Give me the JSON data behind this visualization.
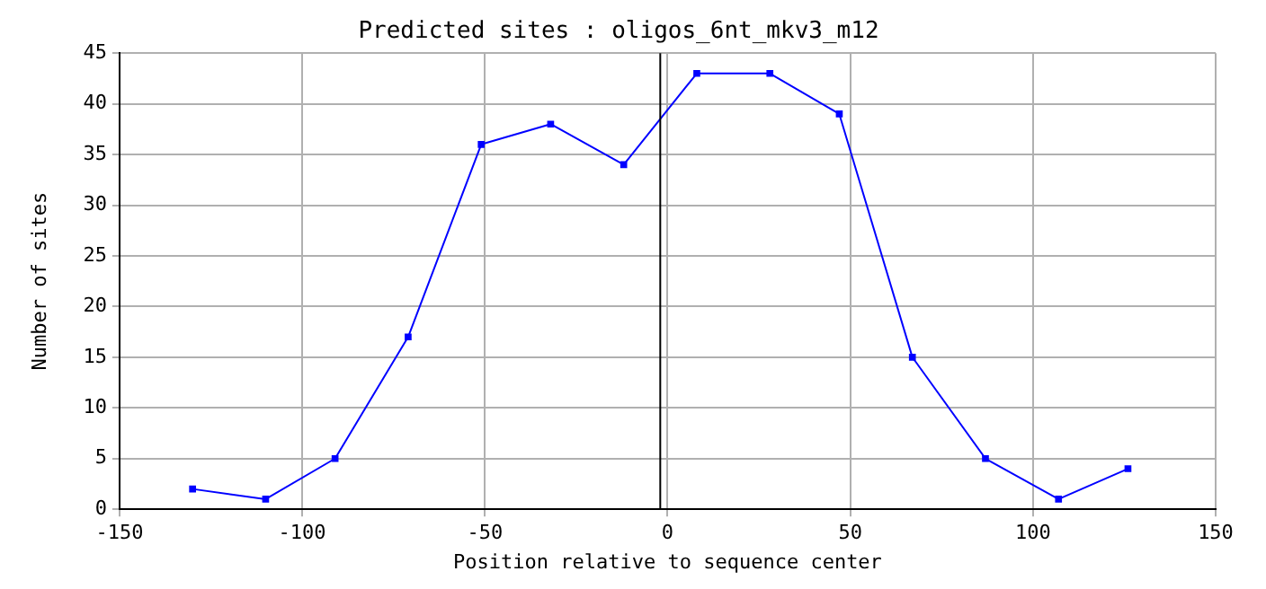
{
  "chart_data": {
    "type": "line",
    "title": "Predicted sites : oligos_6nt_mkv3_m12",
    "xlabel": "Position relative to sequence center",
    "ylabel": "Number of sites",
    "x": [
      -130,
      -110,
      -91,
      -71,
      -51,
      -32,
      -12,
      8,
      28,
      47,
      67,
      87,
      107,
      126
    ],
    "series": [
      {
        "color": "#0000ff",
        "values": [
          2,
          1,
          5,
          17,
          36,
          38,
          34,
          43,
          43,
          39,
          15,
          5,
          1,
          4
        ]
      }
    ],
    "xlim": [
      -150,
      150
    ],
    "xticks": [
      -150,
      -100,
      -50,
      0,
      50,
      100,
      150
    ],
    "ylim": [
      0,
      45
    ],
    "yticks": [
      0,
      5,
      10,
      15,
      20,
      25,
      30,
      35,
      40,
      45
    ],
    "ref_lines": [
      {
        "axis": "x",
        "value": -2,
        "color": "#000000"
      }
    ],
    "grid": true,
    "legend": false,
    "marker": "square",
    "line_style": "solid"
  }
}
